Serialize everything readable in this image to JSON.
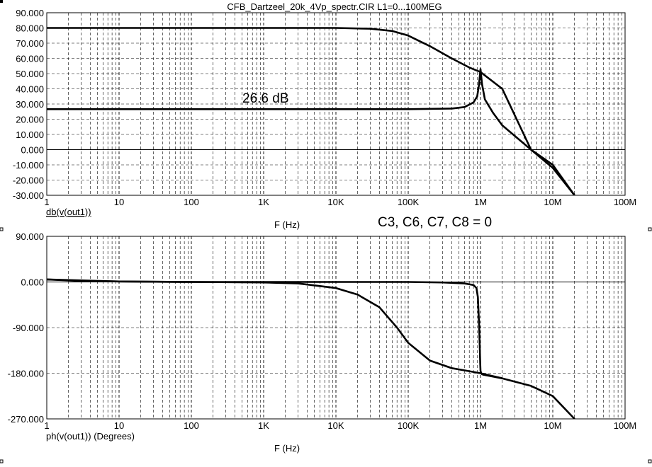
{
  "title": "CFB_Dartzeel_20k_4Vp_spectr.CIR L1=0...100MEG",
  "annotation_condition": "C3, C6, C7, C8 = 0",
  "chart_data": [
    {
      "type": "line",
      "id": "magnitude",
      "xscale": "log",
      "xlim": [
        1,
        100000000
      ],
      "ylim": [
        -30,
        90
      ],
      "x_tick_labels": [
        "1",
        "10",
        "100",
        "1K",
        "10K",
        "100K",
        "1M",
        "10M",
        "100M"
      ],
      "y_tick_labels": [
        "90.000",
        "80.000",
        "70.000",
        "60.000",
        "50.000",
        "40.000",
        "30.000",
        "20.000",
        "10.000",
        "0.000",
        "-10.000",
        "-20.000",
        "-30.000"
      ],
      "xlabel": "F (Hz)",
      "ylabel": "db(v(out1))",
      "grid": true,
      "annotation": "26.6 dB",
      "series": [
        {
          "x": [
            1,
            10000,
            30000,
            60000,
            100000,
            200000,
            400000,
            700000,
            1000000,
            2000000,
            5000000,
            10000000,
            20000000
          ],
          "y": [
            80,
            80,
            79.5,
            78,
            75,
            68,
            60,
            54,
            51,
            40,
            0,
            -10,
            -30
          ]
        },
        {
          "x": [
            1,
            100000,
            400000,
            600000,
            800000,
            900000,
            950000,
            1000000,
            1050000,
            1150000,
            1500000,
            2000000,
            5000000,
            10000000,
            20000000
          ],
          "y": [
            26.6,
            26.6,
            27,
            28,
            31,
            35,
            42,
            53,
            43,
            33,
            24,
            16,
            0,
            -12,
            -30
          ]
        }
      ]
    },
    {
      "type": "line",
      "id": "phase",
      "xscale": "log",
      "xlim": [
        1,
        100000000
      ],
      "ylim": [
        -270,
        90
      ],
      "x_tick_labels": [
        "1",
        "10",
        "100",
        "1K",
        "10K",
        "100K",
        "1M",
        "10M",
        "100M"
      ],
      "y_tick_labels": [
        "90.000",
        "0.000",
        "-90.000",
        "-180.000",
        "-270.000"
      ],
      "xlabel": "F (Hz)",
      "ylabel": "ph(v(out1)) (Degrees)",
      "grid": true,
      "series": [
        {
          "x": [
            1,
            3,
            10,
            100,
            1000,
            3000,
            10000,
            20000,
            40000,
            70000,
            100000,
            200000,
            400000,
            700000,
            1000000,
            2000000,
            5000000,
            10000000,
            20000000
          ],
          "y": [
            5,
            2,
            1,
            0,
            -1,
            -3,
            -12,
            -25,
            -50,
            -90,
            -120,
            -155,
            -170,
            -176,
            -180,
            -190,
            -205,
            -225,
            -270
          ]
        },
        {
          "x": [
            1,
            10,
            100,
            10000,
            100000,
            300000,
            600000,
            800000,
            880000,
            920000,
            960000,
            990000,
            1000000,
            1020000,
            1050000,
            1100000,
            2000000
          ],
          "y": [
            5,
            1,
            0,
            0,
            0,
            -1,
            -3,
            -6,
            -12,
            -30,
            -90,
            -160,
            -175,
            -180,
            -182,
            -183,
            -190
          ]
        }
      ]
    }
  ]
}
